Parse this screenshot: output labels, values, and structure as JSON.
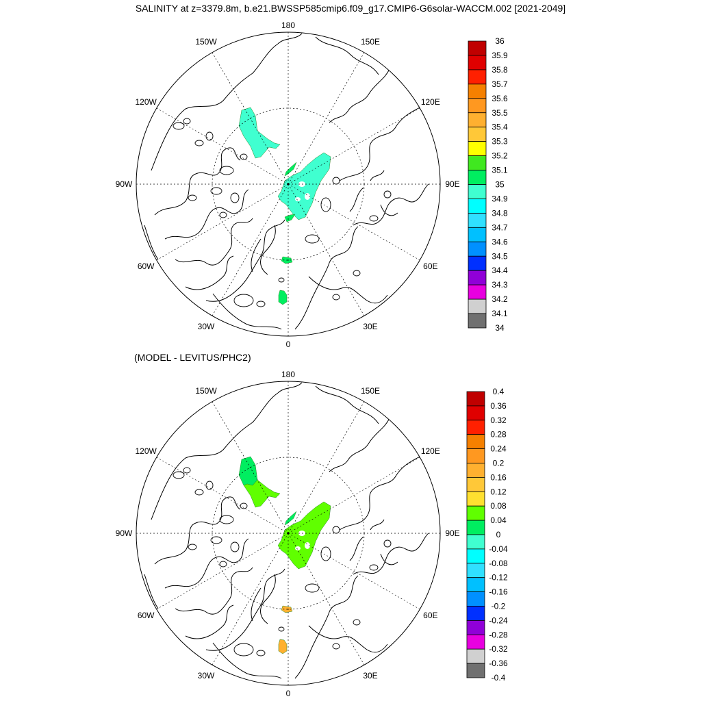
{
  "title": "SALINITY at z=3379.8m, b.e21.BWSSP585cmip6.f09_g17.CMIP6-G6solar-WACCM.002 [2021-2049]",
  "panels": [
    {
      "id": "salinity",
      "subtitle": "",
      "lon_labels": [
        {
          "lon": 180,
          "text": "180"
        },
        {
          "lon": -150,
          "text": "150W"
        },
        {
          "lon": 150,
          "text": "150E"
        },
        {
          "lon": -120,
          "text": "120W"
        },
        {
          "lon": 120,
          "text": "120E"
        },
        {
          "lon": -90,
          "text": "90W"
        },
        {
          "lon": 90,
          "text": "90E"
        },
        {
          "lon": -60,
          "text": "60W"
        },
        {
          "lon": 60,
          "text": "60E"
        },
        {
          "lon": -30,
          "text": "30W"
        },
        {
          "lon": 30,
          "text": "30E"
        },
        {
          "lon": 0,
          "text": "0"
        }
      ],
      "colorbar": {
        "labels": [
          "36",
          "35.9",
          "35.8",
          "35.7",
          "35.6",
          "35.5",
          "35.4",
          "35.3",
          "35.2",
          "35.1",
          "35",
          "34.9",
          "34.8",
          "34.7",
          "34.6",
          "34.5",
          "34.4",
          "34.3",
          "34.2",
          "34.1",
          "34"
        ],
        "colors": [
          "#c00000",
          "#e00000",
          "#ff2000",
          "#f58000",
          "#ff9820",
          "#ffb030",
          "#ffc838",
          "#ffff00",
          "#40e820",
          "#00ee60",
          "#40ffd0",
          "#00ffff",
          "#30e0ff",
          "#00c0ff",
          "#0090ff",
          "#0030ff",
          "#9000d8",
          "#e800e0",
          "#d0d0d0",
          "#707070"
        ]
      },
      "fields": [
        {
          "name": "beaufort-sea-patch",
          "color": "#40ffd0"
        },
        {
          "name": "eurasian-basin-patch",
          "color": "#40ffd0"
        },
        {
          "name": "small-patch-north",
          "color": "#00ee60"
        },
        {
          "name": "small-patch-fram",
          "color": "#00ee60"
        },
        {
          "name": "greenland-sea-patch-1",
          "color": "#00ee60"
        },
        {
          "name": "greenland-sea-patch-2",
          "color": "#00ee60"
        }
      ]
    },
    {
      "id": "difference",
      "subtitle": "(MODEL - LEVITUS/PHC2)",
      "lon_labels": [
        {
          "lon": 180,
          "text": "180"
        },
        {
          "lon": -150,
          "text": "150W"
        },
        {
          "lon": 150,
          "text": "150E"
        },
        {
          "lon": -120,
          "text": "120W"
        },
        {
          "lon": 120,
          "text": "120E"
        },
        {
          "lon": -90,
          "text": "90W"
        },
        {
          "lon": 90,
          "text": "90E"
        },
        {
          "lon": -60,
          "text": "60W"
        },
        {
          "lon": 60,
          "text": "60E"
        },
        {
          "lon": -30,
          "text": "30W"
        },
        {
          "lon": 30,
          "text": "30E"
        },
        {
          "lon": 0,
          "text": "0"
        }
      ],
      "colorbar": {
        "labels": [
          "0.4",
          "0.36",
          "0.32",
          "0.28",
          "0.24",
          "0.2",
          "0.16",
          "0.12",
          "0.08",
          "0.04",
          "0",
          "-0.04",
          "-0.08",
          "-0.12",
          "-0.16",
          "-0.2",
          "-0.24",
          "-0.28",
          "-0.32",
          "-0.36",
          "-0.4"
        ],
        "colors": [
          "#c00000",
          "#e00000",
          "#ff2000",
          "#f58000",
          "#ff9820",
          "#ffb030",
          "#ffc838",
          "#ffe030",
          "#60ff00",
          "#00ee60",
          "#40ffd0",
          "#00ffff",
          "#30e0ff",
          "#00c0ff",
          "#0090ff",
          "#0030ff",
          "#9000d8",
          "#e800e0",
          "#d0d0d0",
          "#707070"
        ]
      },
      "fields": [
        {
          "name": "beaufort-sea-patch-upper",
          "color": "#00ee60"
        },
        {
          "name": "beaufort-sea-patch-lower",
          "color": "#60ff00"
        },
        {
          "name": "eurasian-basin-patch",
          "color": "#60ff00"
        },
        {
          "name": "small-patch-north",
          "color": "#00ee60"
        },
        {
          "name": "greenland-sea-patch-1",
          "color": "#ffb030"
        },
        {
          "name": "greenland-sea-patch-2",
          "color": "#ffb030"
        }
      ]
    }
  ]
}
